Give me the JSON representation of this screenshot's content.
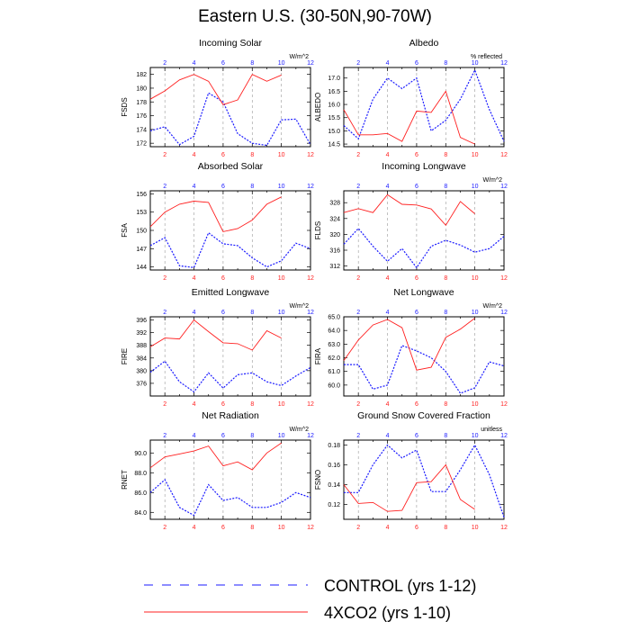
{
  "title": "Eastern U.S. (30-50N,90-70W)",
  "colors": {
    "control": "#1a1aff",
    "co2": "#ff2020",
    "grid": "#999999",
    "axis": "#000000"
  },
  "legend": [
    {
      "label": "CONTROL (yrs 1-12)",
      "style": "dashed",
      "series": "control"
    },
    {
      "label": "4XCO2 (yrs 1-10)",
      "style": "solid",
      "series": "co2"
    }
  ],
  "chart_data": [
    {
      "type": "line",
      "title": "Incoming Solar",
      "ylabel": "FSDS",
      "units": "W/m^2",
      "ylim": [
        171.5,
        183
      ],
      "yticks": [
        "172",
        "174",
        "176",
        "178",
        "180",
        "182"
      ],
      "ytick_values": [
        172,
        174,
        176,
        178,
        180,
        182
      ],
      "bottom_ticks": [
        "2",
        "4",
        "6",
        "8",
        "10",
        "12"
      ],
      "top_ticks": [
        "2",
        "4",
        "6",
        "8",
        "10",
        "12"
      ],
      "series": [
        {
          "name": "CONTROL (yrs 1-12)",
          "x": [
            1,
            2,
            3,
            4,
            5,
            6,
            7,
            8,
            9,
            10,
            11,
            12
          ],
          "values": [
            173.8,
            174.4,
            171.8,
            173.0,
            179.3,
            178.0,
            173.4,
            172.0,
            171.7,
            175.4,
            175.5,
            171.8
          ]
        },
        {
          "name": "4XCO2 (yrs 1-10)",
          "x": [
            1,
            2,
            3,
            4,
            5,
            6,
            7,
            8,
            9,
            10
          ],
          "values": [
            178.4,
            179.6,
            181.2,
            182.0,
            181.0,
            177.6,
            178.3,
            182.0,
            181.0,
            181.9
          ]
        }
      ]
    },
    {
      "type": "line",
      "title": "Albedo",
      "ylabel": "ALBEDO",
      "units": "% reflected",
      "ylim": [
        14.4,
        17.4
      ],
      "yticks": [
        "14.5",
        "15.0",
        "15.5",
        "16.0",
        "16.5",
        "17.0"
      ],
      "ytick_values": [
        14.5,
        15.0,
        15.5,
        16.0,
        16.5,
        17.0
      ],
      "bottom_ticks": [
        "2",
        "4",
        "6",
        "8",
        "10",
        "12"
      ],
      "top_ticks": [
        "2",
        "4",
        "6",
        "8",
        "10",
        "12"
      ],
      "series": [
        {
          "name": "CONTROL (yrs 1-12)",
          "x": [
            1,
            2,
            3,
            4,
            5,
            6,
            7,
            8,
            9,
            10,
            11,
            12
          ],
          "values": [
            15.2,
            14.7,
            16.2,
            17.0,
            16.6,
            17.0,
            15.0,
            15.4,
            16.2,
            17.3,
            15.8,
            14.6
          ]
        },
        {
          "name": "4XCO2 (yrs 1-10)",
          "x": [
            1,
            2,
            3,
            4,
            5,
            6,
            7,
            8,
            9,
            10
          ],
          "values": [
            15.8,
            14.85,
            14.85,
            14.9,
            14.6,
            15.75,
            15.7,
            16.5,
            14.75,
            14.5
          ]
        }
      ]
    },
    {
      "type": "line",
      "title": "Absorbed Solar",
      "ylabel": "FSA",
      "units": "",
      "ylim": [
        143.5,
        156.5
      ],
      "yticks": [
        "144",
        "147",
        "150",
        "153",
        "156"
      ],
      "ytick_values": [
        144,
        147,
        150,
        153,
        156
      ],
      "bottom_ticks": [
        "2",
        "4",
        "6",
        "8",
        "10",
        "12"
      ],
      "top_ticks": [
        "2",
        "4",
        "6",
        "8",
        "10",
        "12"
      ],
      "series": [
        {
          "name": "CONTROL (yrs 1-12)",
          "x": [
            1,
            2,
            3,
            4,
            5,
            6,
            7,
            8,
            9,
            10,
            11,
            12
          ],
          "values": [
            147.5,
            148.8,
            144.2,
            143.9,
            149.6,
            147.8,
            147.5,
            145.5,
            144.0,
            145.0,
            147.9,
            147.0
          ]
        },
        {
          "name": "4XCO2 (yrs 1-10)",
          "x": [
            1,
            2,
            3,
            4,
            5,
            6,
            7,
            8,
            9,
            10
          ],
          "values": [
            150.6,
            153.0,
            154.3,
            154.8,
            154.6,
            149.8,
            150.3,
            151.7,
            154.3,
            155.5
          ]
        }
      ]
    },
    {
      "type": "line",
      "title": "Incoming Longwave",
      "ylabel": "FLDS",
      "units": "W/m^2",
      "ylim": [
        311,
        331
      ],
      "yticks": [
        "312",
        "316",
        "320",
        "324",
        "328"
      ],
      "ytick_values": [
        312,
        316,
        320,
        324,
        328
      ],
      "bottom_ticks": [
        "2",
        "4",
        "6",
        "8",
        "10",
        "12"
      ],
      "top_ticks": [
        "2",
        "4",
        "6",
        "8",
        "10",
        "12"
      ],
      "series": [
        {
          "name": "CONTROL (yrs 1-12)",
          "x": [
            1,
            2,
            3,
            4,
            5,
            6,
            7,
            8,
            9,
            10,
            11,
            12
          ],
          "values": [
            317.5,
            321.5,
            317.0,
            313.2,
            316.4,
            311.6,
            317.0,
            318.5,
            317.3,
            315.5,
            316.4,
            319.5
          ]
        },
        {
          "name": "4XCO2 (yrs 1-10)",
          "x": [
            1,
            2,
            3,
            4,
            5,
            6,
            7,
            8,
            9,
            10
          ],
          "values": [
            325.5,
            326.5,
            325.5,
            330.0,
            327.6,
            327.4,
            326.4,
            322.3,
            328.3,
            325.2
          ]
        }
      ]
    },
    {
      "type": "line",
      "title": "Emitted Longwave",
      "ylabel": "FIRE",
      "units": "W/m^2",
      "ylim": [
        372,
        397
      ],
      "yticks": [
        "376",
        "380",
        "384",
        "388",
        "392",
        "396"
      ],
      "ytick_values": [
        376,
        380,
        384,
        388,
        392,
        396
      ],
      "bottom_ticks": [
        "2",
        "4",
        "6",
        "8",
        "10",
        "12"
      ],
      "top_ticks": [
        "2",
        "4",
        "6",
        "8",
        "10",
        "12"
      ],
      "series": [
        {
          "name": "CONTROL (yrs 1-12)",
          "x": [
            1,
            2,
            3,
            4,
            5,
            6,
            7,
            8,
            9,
            10,
            11,
            12
          ],
          "values": [
            379.5,
            383.0,
            376.5,
            373.3,
            379.3,
            374.5,
            378.7,
            379.3,
            376.5,
            375.3,
            378.3,
            381.0
          ]
        },
        {
          "name": "4XCO2 (yrs 1-10)",
          "x": [
            1,
            2,
            3,
            4,
            5,
            6,
            7,
            8,
            9,
            10
          ],
          "values": [
            387.5,
            390.3,
            390.0,
            396.0,
            392.3,
            388.8,
            388.5,
            386.5,
            392.6,
            390.3
          ]
        }
      ]
    },
    {
      "type": "line",
      "title": "Net Longwave",
      "ylabel": "FIRA",
      "units": "W/m^2",
      "ylim": [
        59.2,
        65.0
      ],
      "yticks": [
        "60.0",
        "61.0",
        "62.0",
        "63.0",
        "64.0",
        "65.0"
      ],
      "ytick_values": [
        60.0,
        61.0,
        62.0,
        63.0,
        64.0,
        65.0
      ],
      "bottom_ticks": [
        "2",
        "4",
        "6",
        "8",
        "10",
        "12"
      ],
      "top_ticks": [
        "2",
        "4",
        "6",
        "8",
        "10",
        "12"
      ],
      "series": [
        {
          "name": "CONTROL (yrs 1-12)",
          "x": [
            1,
            2,
            3,
            4,
            5,
            6,
            7,
            8,
            9,
            10,
            11,
            12
          ],
          "values": [
            61.5,
            61.5,
            59.7,
            60.0,
            62.9,
            62.5,
            62.0,
            61.0,
            59.4,
            59.8,
            61.7,
            61.4
          ]
        },
        {
          "name": "4XCO2 (yrs 1-10)",
          "x": [
            1,
            2,
            3,
            4,
            5,
            6,
            7,
            8,
            9,
            10
          ],
          "values": [
            61.8,
            63.3,
            64.4,
            64.8,
            64.2,
            61.1,
            61.3,
            63.5,
            64.1,
            64.9
          ]
        }
      ]
    },
    {
      "type": "line",
      "title": "Net Radiation",
      "ylabel": "RNET",
      "units": "W/m^2",
      "ylim": [
        83.3,
        91.3
      ],
      "yticks": [
        "84.0",
        "86.0",
        "88.0",
        "90.0"
      ],
      "ytick_values": [
        84.0,
        86.0,
        88.0,
        90.0
      ],
      "bottom_ticks": [
        "2",
        "4",
        "6",
        "8",
        "10",
        "12"
      ],
      "top_ticks": [
        "2",
        "4",
        "6",
        "8",
        "10",
        "12"
      ],
      "series": [
        {
          "name": "CONTROL (yrs 1-12)",
          "x": [
            1,
            2,
            3,
            4,
            5,
            6,
            7,
            8,
            9,
            10,
            11,
            12
          ],
          "values": [
            86.0,
            87.3,
            84.5,
            83.7,
            86.8,
            85.2,
            85.5,
            84.5,
            84.5,
            85.0,
            86.0,
            85.5
          ]
        },
        {
          "name": "4XCO2 (yrs 1-10)",
          "x": [
            1,
            2,
            3,
            4,
            5,
            6,
            7,
            8,
            9,
            10
          ],
          "values": [
            88.5,
            89.6,
            89.9,
            90.2,
            90.7,
            88.7,
            89.1,
            88.3,
            90.0,
            91.0
          ]
        }
      ]
    },
    {
      "type": "line",
      "title": "Ground Snow Covered Fraction",
      "ylabel": "FSNO",
      "units": "unitless",
      "ylim": [
        0.105,
        0.185
      ],
      "yticks": [
        "0.12",
        "0.14",
        "0.16",
        "0.18"
      ],
      "ytick_values": [
        0.12,
        0.14,
        0.16,
        0.18
      ],
      "bottom_ticks": [
        "2",
        "4",
        "6",
        "8",
        "10",
        "12"
      ],
      "top_ticks": [
        "2",
        "4",
        "6",
        "8",
        "10",
        "12"
      ],
      "series": [
        {
          "name": "CONTROL (yrs 1-12)",
          "x": [
            1,
            2,
            3,
            4,
            5,
            6,
            7,
            8,
            9,
            10,
            11,
            12
          ],
          "values": [
            0.132,
            0.132,
            0.16,
            0.18,
            0.167,
            0.175,
            0.133,
            0.133,
            0.155,
            0.18,
            0.15,
            0.107
          ]
        },
        {
          "name": "4XCO2 (yrs 1-10)",
          "x": [
            1,
            2,
            3,
            4,
            5,
            6,
            7,
            8,
            9,
            10
          ],
          "values": [
            0.14,
            0.121,
            0.122,
            0.113,
            0.114,
            0.142,
            0.143,
            0.16,
            0.125,
            0.115
          ]
        }
      ]
    }
  ]
}
